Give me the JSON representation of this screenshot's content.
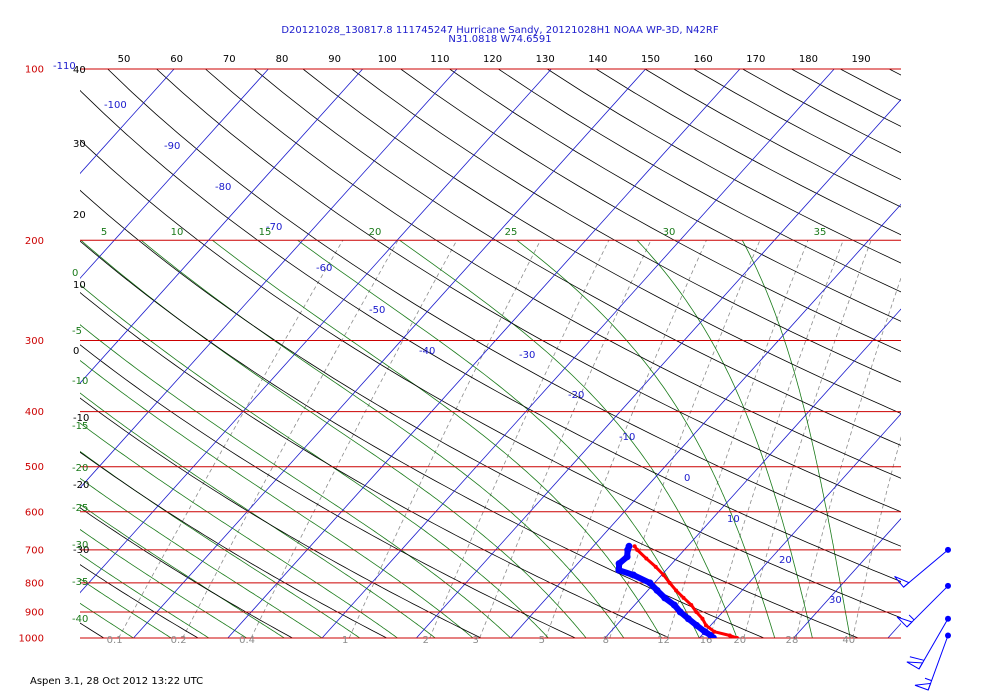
{
  "header": {
    "title_line1": "D20121028_130817.8 111745247 Hurricane Sandy, 20121028H1 NOAA WP-3D, N42RF",
    "title_line2": "N31.0818 W74.6591"
  },
  "footer": {
    "text": "Aspen 3.1, 28 Oct 2012  13:22 UTC"
  },
  "colors": {
    "isobar": "#cc0000",
    "isotherm": "#1a1acc",
    "dry_adiabat": "#000000",
    "moist_adiabat": "#1a7a1a",
    "mixing_ratio": "#8c8c8c",
    "temperature_trace": "#ff0000",
    "dewpoint_trace": "#0000ff"
  },
  "chart_data": {
    "type": "skew-t log-p diagram",
    "y_axis_pressure_labels": [
      "100",
      "200",
      "300",
      "400",
      "500",
      "600",
      "700",
      "800",
      "900",
      "1000"
    ],
    "pressure_levels": [
      100,
      200,
      300,
      400,
      500,
      600,
      700,
      800,
      900,
      1000
    ],
    "top_axis_labels": [
      "50",
      "60",
      "70",
      "80",
      "90",
      "100",
      "110",
      "120",
      "130",
      "140",
      "150",
      "160",
      "170",
      "180",
      "190"
    ],
    "top_axis_values": [
      50,
      60,
      70,
      80,
      90,
      100,
      110,
      120,
      130,
      140,
      150,
      160,
      170,
      180,
      190
    ],
    "corner_label": "-110",
    "isotherm_labels": [
      {
        "t": -100,
        "text": "-100"
      },
      {
        "t": -90,
        "text": "-90"
      },
      {
        "t": -80,
        "text": "-80"
      },
      {
        "t": -70,
        "text": "-70"
      },
      {
        "t": -60,
        "text": "-60"
      },
      {
        "t": -50,
        "text": "-50"
      },
      {
        "t": -40,
        "text": "-40"
      },
      {
        "t": -30,
        "text": "-30"
      },
      {
        "t": -20,
        "text": "-20"
      },
      {
        "t": -10,
        "text": "-10"
      },
      {
        "t": 0,
        "text": "0"
      },
      {
        "t": 10,
        "text": "10"
      },
      {
        "t": 20,
        "text": "20"
      },
      {
        "t": 30,
        "text": "30"
      }
    ],
    "left_black_labels": [
      "40",
      "30",
      "20",
      "10",
      "0",
      "-10",
      "-20",
      "-30"
    ],
    "left_green_labels": [
      "0",
      "-5",
      "-10",
      "-15",
      "-20",
      "-25",
      "-30",
      "-35",
      "-40"
    ],
    "moist_adiabat_top_labels": [
      "5",
      "10",
      "15",
      "20",
      "25",
      "30",
      "35"
    ],
    "mixing_ratio_labels": [
      "0.1",
      "0.2",
      "0.4",
      "1",
      "2",
      "3",
      "5",
      "8",
      "12",
      "16",
      "20",
      "28",
      "40"
    ],
    "temperature_profile": [
      {
        "p": 1000,
        "t": 24.0
      },
      {
        "p": 990,
        "t": 23.0
      },
      {
        "p": 975,
        "t": 21.0
      },
      {
        "p": 950,
        "t": 19.5
      },
      {
        "p": 925,
        "t": 18.5
      },
      {
        "p": 900,
        "t": 17.2
      },
      {
        "p": 875,
        "t": 16.0
      },
      {
        "p": 850,
        "t": 14.5
      },
      {
        "p": 825,
        "t": 13.0
      },
      {
        "p": 800,
        "t": 11.6
      },
      {
        "p": 775,
        "t": 10.2
      },
      {
        "p": 750,
        "t": 8.6
      },
      {
        "p": 725,
        "t": 6.8
      },
      {
        "p": 700,
        "t": 5.0
      },
      {
        "p": 690,
        "t": 4.4
      }
    ],
    "dewpoint_profile": [
      {
        "p": 1000,
        "t": 21.5
      },
      {
        "p": 990,
        "t": 21.0
      },
      {
        "p": 975,
        "t": 20.0
      },
      {
        "p": 950,
        "t": 18.5
      },
      {
        "p": 925,
        "t": 17.0
      },
      {
        "p": 900,
        "t": 15.5
      },
      {
        "p": 875,
        "t": 14.2
      },
      {
        "p": 850,
        "t": 12.5
      },
      {
        "p": 825,
        "t": 11.0
      },
      {
        "p": 800,
        "t": 9.5
      },
      {
        "p": 775,
        "t": 7.0
      },
      {
        "p": 760,
        "t": 5.0
      },
      {
        "p": 740,
        "t": 4.4
      },
      {
        "p": 720,
        "t": 4.6
      },
      {
        "p": 700,
        "t": 4.0
      },
      {
        "p": 690,
        "t": 3.8
      }
    ],
    "wind_barbs": [
      {
        "p": 990,
        "dir": 200,
        "speed": 55
      },
      {
        "p": 925,
        "dir": 210,
        "speed": 60
      },
      {
        "p": 810,
        "dir": 225,
        "speed": 55
      },
      {
        "p": 700,
        "dir": 230,
        "speed": 50
      }
    ]
  }
}
